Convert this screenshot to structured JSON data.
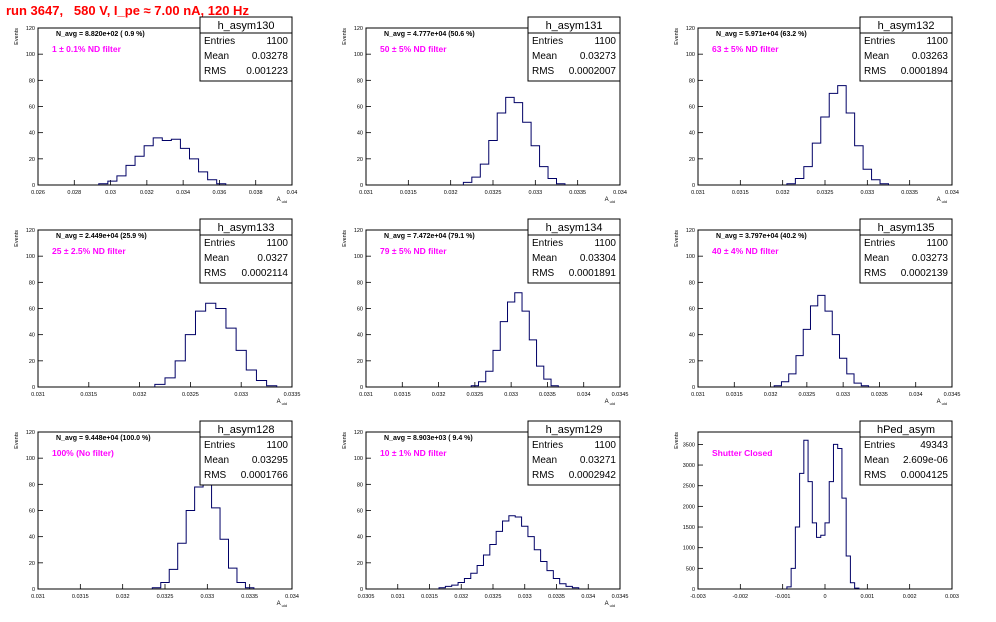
{
  "page_title": "run 3647,   580 V, I_pe ≈ 7.00 nA, 120 Hz",
  "chart_data": [
    {
      "type": "histogram",
      "name": "h_asym130",
      "navg": "N_avg = 8.820e+02 ( 0.9 %)",
      "filter": "1 ± 0.1% ND filter",
      "stats": {
        "entries": "1100",
        "mean": "0.03278",
        "rms": "0.001223"
      },
      "xlabel": "A_uid",
      "ylabel": "Events",
      "xlim": [
        0.026,
        0.04
      ],
      "ylim": [
        0,
        120
      ],
      "xticks": [
        0.026,
        0.028,
        0.03,
        0.032,
        0.034,
        0.036,
        0.038,
        0.04
      ],
      "xtick_labels": [
        "0.026",
        "0.028",
        "0.03",
        "0.032",
        "0.034",
        "0.036",
        "0.038",
        "0.04"
      ],
      "yticks": [
        0,
        20,
        40,
        60,
        80,
        100,
        120
      ],
      "ytick_labels": [
        "0",
        "20",
        "40",
        "60",
        "80",
        "100",
        "120"
      ],
      "x": [
        0.0296,
        0.0301,
        0.0306,
        0.0311,
        0.0316,
        0.0321,
        0.0326,
        0.0331,
        0.0336,
        0.0341,
        0.0346,
        0.0351,
        0.0356,
        0.0361
      ],
      "values": [
        1,
        3,
        7,
        15,
        22,
        30,
        36,
        34,
        35,
        28,
        20,
        10,
        4,
        1
      ]
    },
    {
      "type": "histogram",
      "name": "h_asym131",
      "navg": "N_avg = 4.777e+04 (50.6 %)",
      "filter": "50 ± 5% ND filter",
      "stats": {
        "entries": "1100",
        "mean": "0.03273",
        "rms": "0.0002007"
      },
      "xlabel": "A_uid",
      "ylabel": "Events",
      "xlim": [
        0.031,
        0.034
      ],
      "ylim": [
        0,
        120
      ],
      "xticks": [
        0.031,
        0.0315,
        0.032,
        0.0325,
        0.033,
        0.0335,
        0.034
      ],
      "xtick_labels": [
        "0.031",
        "0.0315",
        "0.032",
        "0.0325",
        "0.033",
        "0.0335",
        "0.034"
      ],
      "yticks": [
        0,
        20,
        40,
        60,
        80,
        100,
        120
      ],
      "ytick_labels": [
        "0",
        "20",
        "40",
        "60",
        "80",
        "100",
        "120"
      ],
      "x": [
        0.0322,
        0.0323,
        0.0324,
        0.0325,
        0.0326,
        0.0327,
        0.0328,
        0.0329,
        0.033,
        0.0331,
        0.0332,
        0.0333
      ],
      "values": [
        2,
        6,
        16,
        34,
        55,
        67,
        63,
        48,
        30,
        14,
        5,
        1
      ]
    },
    {
      "type": "histogram",
      "name": "h_asym132",
      "navg": "N_avg = 5.971e+04 (63.2 %)",
      "filter": "63 ± 5% ND filter",
      "stats": {
        "entries": "1100",
        "mean": "0.03263",
        "rms": "0.0001894"
      },
      "xlabel": "A_uid",
      "ylabel": "Events",
      "xlim": [
        0.031,
        0.034
      ],
      "ylim": [
        0,
        120
      ],
      "xticks": [
        0.031,
        0.0315,
        0.032,
        0.0325,
        0.033,
        0.0335,
        0.034
      ],
      "xtick_labels": [
        "0.031",
        "0.0315",
        "0.032",
        "0.0325",
        "0.033",
        "0.0335",
        "0.034"
      ],
      "yticks": [
        0,
        20,
        40,
        60,
        80,
        100,
        120
      ],
      "ytick_labels": [
        "0",
        "20",
        "40",
        "60",
        "80",
        "100",
        "120"
      ],
      "x": [
        0.0321,
        0.0322,
        0.0323,
        0.0324,
        0.0325,
        0.0326,
        0.0327,
        0.0328,
        0.0329,
        0.033,
        0.0331,
        0.0332
      ],
      "values": [
        1,
        5,
        14,
        32,
        52,
        70,
        76,
        55,
        30,
        12,
        4,
        1
      ]
    },
    {
      "type": "histogram",
      "name": "h_asym133",
      "navg": "N_avg = 2.449e+04 (25.9 %)",
      "filter": "25 ± 2.5% ND filter",
      "stats": {
        "entries": "1100",
        "mean": "0.0327",
        "rms": "0.0002114"
      },
      "xlabel": "A_uid",
      "ylabel": "Events",
      "xlim": [
        0.031,
        0.0335
      ],
      "ylim": [
        0,
        120
      ],
      "xticks": [
        0.031,
        0.0315,
        0.032,
        0.0325,
        0.033,
        0.0335
      ],
      "xtick_labels": [
        "0.031",
        "0.0315",
        "0.032",
        "0.0325",
        "0.033",
        "0.0335"
      ],
      "yticks": [
        0,
        20,
        40,
        60,
        80,
        100,
        120
      ],
      "ytick_labels": [
        "0",
        "20",
        "40",
        "60",
        "80",
        "100",
        "120"
      ],
      "x": [
        0.0322,
        0.0323,
        0.0324,
        0.0325,
        0.0326,
        0.0327,
        0.0328,
        0.0329,
        0.033,
        0.0331,
        0.0332,
        0.0333
      ],
      "values": [
        2,
        7,
        20,
        40,
        58,
        64,
        60,
        45,
        28,
        13,
        5,
        1
      ]
    },
    {
      "type": "histogram",
      "name": "h_asym134",
      "navg": "N_avg = 7.472e+04 (79.1 %)",
      "filter": "79 ± 5% ND filter",
      "stats": {
        "entries": "1100",
        "mean": "0.03304",
        "rms": "0.0001891"
      },
      "xlabel": "A_uid",
      "ylabel": "Events",
      "xlim": [
        0.031,
        0.0345
      ],
      "ylim": [
        0,
        120
      ],
      "xticks": [
        0.031,
        0.0315,
        0.032,
        0.0325,
        0.033,
        0.0335,
        0.034,
        0.0345
      ],
      "xtick_labels": [
        "0.031",
        "0.0315",
        "0.032",
        "0.0325",
        "0.033",
        "0.0335",
        "0.034",
        "0.0345"
      ],
      "yticks": [
        0,
        20,
        40,
        60,
        80,
        100,
        120
      ],
      "ytick_labels": [
        "0",
        "20",
        "40",
        "60",
        "80",
        "100",
        "120"
      ],
      "x": [
        0.0325,
        0.0326,
        0.0327,
        0.0328,
        0.0329,
        0.033,
        0.0331,
        0.0332,
        0.0333,
        0.0334,
        0.0335,
        0.0336
      ],
      "values": [
        1,
        4,
        12,
        28,
        50,
        65,
        72,
        58,
        36,
        16,
        6,
        1
      ]
    },
    {
      "type": "histogram",
      "name": "h_asym135",
      "navg": "N_avg = 3.797e+04 (40.2 %)",
      "filter": "40 ± 4% ND filter",
      "stats": {
        "entries": "1100",
        "mean": "0.03273",
        "rms": "0.0002139"
      },
      "xlabel": "A_uid",
      "ylabel": "Events",
      "xlim": [
        0.031,
        0.0345
      ],
      "ylim": [
        0,
        120
      ],
      "xticks": [
        0.031,
        0.0315,
        0.032,
        0.0325,
        0.033,
        0.0335,
        0.034,
        0.0345
      ],
      "xtick_labels": [
        "0.031",
        "0.0315",
        "0.032",
        "0.0325",
        "0.033",
        "0.0335",
        "0.034",
        "0.0345"
      ],
      "yticks": [
        0,
        20,
        40,
        60,
        80,
        100,
        120
      ],
      "ytick_labels": [
        "0",
        "20",
        "40",
        "60",
        "80",
        "100",
        "120"
      ],
      "x": [
        0.0321,
        0.0322,
        0.0323,
        0.0324,
        0.0325,
        0.0326,
        0.0327,
        0.0328,
        0.0329,
        0.033,
        0.0331,
        0.0332,
        0.0333
      ],
      "values": [
        1,
        4,
        10,
        24,
        44,
        62,
        70,
        58,
        40,
        22,
        10,
        3,
        1
      ]
    },
    {
      "type": "histogram",
      "name": "h_asym128",
      "navg": "N_avg = 9.448e+04 (100.0 %)",
      "filter": "100% (No filter)",
      "stats": {
        "entries": "1100",
        "mean": "0.03295",
        "rms": "0.0001766"
      },
      "xlabel": "A_uid",
      "ylabel": "Events",
      "xlim": [
        0.031,
        0.034
      ],
      "ylim": [
        0,
        120
      ],
      "xticks": [
        0.031,
        0.0315,
        0.032,
        0.0325,
        0.033,
        0.0335,
        0.034
      ],
      "xtick_labels": [
        "0.031",
        "0.0315",
        "0.032",
        "0.0325",
        "0.033",
        "0.0335",
        "0.034"
      ],
      "yticks": [
        0,
        20,
        40,
        60,
        80,
        100,
        120
      ],
      "ytick_labels": [
        "0",
        "20",
        "40",
        "60",
        "80",
        "100",
        "120"
      ],
      "x": [
        0.0324,
        0.0325,
        0.0326,
        0.0327,
        0.0328,
        0.0329,
        0.033,
        0.0331,
        0.0332,
        0.0333,
        0.0334,
        0.0335
      ],
      "values": [
        1,
        5,
        15,
        35,
        60,
        78,
        86,
        62,
        38,
        16,
        5,
        1
      ]
    },
    {
      "type": "histogram",
      "name": "h_asym129",
      "navg": "N_avg = 8.903e+03 ( 9.4 %)",
      "filter": "10 ± 1% ND filter",
      "stats": {
        "entries": "1100",
        "mean": "0.03271",
        "rms": "0.0002942"
      },
      "xlabel": "A_uid",
      "ylabel": "Events",
      "xlim": [
        0.0305,
        0.0345
      ],
      "ylim": [
        0,
        120
      ],
      "xticks": [
        0.0305,
        0.031,
        0.0315,
        0.032,
        0.0325,
        0.033,
        0.0335,
        0.034,
        0.0345
      ],
      "xtick_labels": [
        "0.0305",
        "0.031",
        "0.0315",
        "0.032",
        "0.0325",
        "0.033",
        "0.0335",
        "0.034",
        "0.0345"
      ],
      "yticks": [
        0,
        20,
        40,
        60,
        80,
        100,
        120
      ],
      "ytick_labels": [
        "0",
        "20",
        "40",
        "60",
        "80",
        "100",
        "120"
      ],
      "x": [
        0.0317,
        0.0318,
        0.0319,
        0.032,
        0.0321,
        0.0322,
        0.0323,
        0.0324,
        0.0325,
        0.0326,
        0.0327,
        0.0328,
        0.0329,
        0.033,
        0.0331,
        0.0332,
        0.0333,
        0.0334,
        0.0335,
        0.0336,
        0.0337,
        0.0338
      ],
      "values": [
        1,
        2,
        3,
        5,
        8,
        12,
        18,
        26,
        34,
        44,
        52,
        56,
        55,
        48,
        40,
        30,
        21,
        14,
        8,
        4,
        2,
        1
      ]
    },
    {
      "type": "histogram",
      "name": "hPed_asym",
      "navg": "",
      "filter": "Shutter Closed",
      "stats": {
        "entries": "49343",
        "mean": "2.609e-06",
        "rms": "0.0004125"
      },
      "xlabel": "",
      "ylabel": "Events",
      "xlim": [
        -0.003,
        0.003
      ],
      "ylim": [
        0,
        3800
      ],
      "xticks": [
        -0.003,
        -0.002,
        -0.001,
        0,
        0.001,
        0.002,
        0.003
      ],
      "xtick_labels": [
        "-0.003",
        "-0.002",
        "-0.001",
        "0",
        "0.001",
        "0.002",
        "0.003"
      ],
      "yticks": [
        0,
        500,
        1000,
        1500,
        2000,
        2500,
        3000,
        3500
      ],
      "ytick_labels": [
        "0",
        "500",
        "1000",
        "1500",
        "2000",
        "2500",
        "3000",
        "3500"
      ],
      "x": [
        -0.00085,
        -0.00075,
        -0.00065,
        -0.00055,
        -0.00045,
        -0.00035,
        -0.00025,
        -0.00015,
        -5e-05,
        5e-05,
        0.00015,
        0.00025,
        0.00035,
        0.00045,
        0.00055,
        0.00065,
        0.00075
      ],
      "values": [
        50,
        500,
        1500,
        2800,
        3600,
        2600,
        1600,
        1250,
        1300,
        1600,
        2600,
        3500,
        3400,
        2200,
        800,
        150,
        20
      ]
    }
  ]
}
